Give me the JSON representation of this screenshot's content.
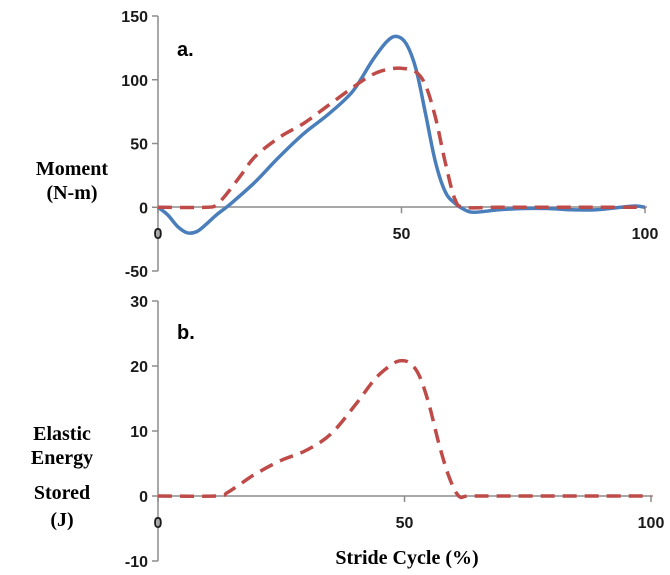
{
  "colors": {
    "measured": "#4a7ebb",
    "model": "#be4b48"
  },
  "chart_data": [
    {
      "type": "line",
      "panel_label": "a.",
      "ylabel_lines": [
        "Moment",
        "(N-m)"
      ],
      "xlim": [
        0,
        100
      ],
      "ylim": [
        -50,
        150
      ],
      "x_ticks": [
        "0",
        "50",
        "100"
      ],
      "y_ticks": [
        "-50",
        "0",
        "50",
        "100",
        "150"
      ],
      "series": [
        {
          "style": "solid",
          "x": [
            0,
            2,
            4,
            6,
            8,
            10,
            12,
            15,
            20,
            25,
            30,
            35,
            40,
            44,
            47,
            49,
            51,
            53,
            55,
            57,
            59,
            61,
            63,
            65,
            70,
            75,
            80,
            85,
            90,
            95,
            98,
            100
          ],
          "y": [
            0,
            -6,
            -15,
            -20,
            -19,
            -13,
            -6,
            3,
            20,
            40,
            58,
            73,
            91,
            115,
            130,
            134,
            128,
            108,
            72,
            35,
            12,
            3,
            -2,
            -4,
            -2,
            -1,
            -1,
            -2,
            -2,
            0,
            1,
            0
          ]
        },
        {
          "style": "dashed",
          "x": [
            0,
            10,
            12,
            14,
            17,
            20,
            25,
            30,
            35,
            40,
            44,
            47,
            50,
            53,
            55,
            57,
            59,
            61,
            63,
            70,
            80,
            90,
            100
          ],
          "y": [
            0,
            0,
            2,
            10,
            25,
            40,
            55,
            66,
            80,
            94,
            104,
            108,
            109,
            106,
            95,
            70,
            35,
            6,
            0,
            0,
            0,
            0,
            0
          ]
        }
      ]
    },
    {
      "type": "line",
      "panel_label": "b.",
      "ylabel_lines": [
        "Elastic",
        "Energy",
        "Stored",
        "(J)"
      ],
      "xlabel": "Stride Cycle (%)",
      "xlim": [
        0,
        100
      ],
      "ylim": [
        -10,
        30
      ],
      "x_ticks": [
        "0",
        "50",
        "100"
      ],
      "y_ticks": [
        "-10",
        "0",
        "10",
        "20",
        "30"
      ],
      "series": [
        {
          "style": "dashed",
          "x": [
            0,
            12,
            14,
            17,
            20,
            25,
            30,
            35,
            40,
            44,
            47,
            49,
            51,
            53,
            55,
            57,
            59,
            61,
            63,
            70,
            80,
            90,
            100
          ],
          "y": [
            0,
            0,
            0.5,
            2,
            3.5,
            5.5,
            7,
            9.5,
            14,
            18,
            20,
            20.8,
            20.5,
            18.5,
            14,
            8,
            3,
            0,
            0,
            0,
            0,
            0,
            0
          ]
        }
      ]
    }
  ]
}
